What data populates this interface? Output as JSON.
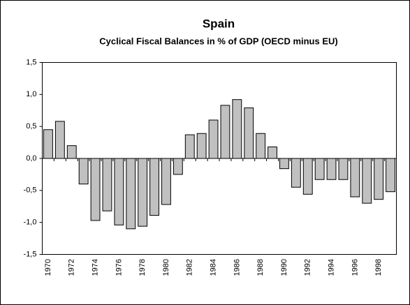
{
  "chart_data": {
    "type": "bar",
    "title": "Spain",
    "subtitle": "Cyclical Fiscal Balances in % of GDP (OECD minus EU)",
    "categories": [
      "1970",
      null,
      "1972",
      null,
      "1974",
      null,
      "1976",
      null,
      "1978",
      null,
      "1980",
      null,
      "1982",
      null,
      "1984",
      null,
      "1986",
      null,
      "1988",
      null,
      "1990",
      null,
      "1992",
      null,
      "1994",
      null,
      "1996",
      null,
      "1998",
      null
    ],
    "values": [
      0.45,
      0.58,
      0.2,
      -0.4,
      -0.97,
      -0.82,
      -1.04,
      -1.1,
      -1.06,
      -0.89,
      -0.72,
      -0.25,
      0.37,
      0.39,
      0.6,
      0.83,
      0.92,
      0.79,
      0.39,
      0.18,
      -0.16,
      -0.45,
      -0.56,
      -0.33,
      -0.33,
      -0.33,
      -0.6,
      -0.7,
      -0.64,
      -0.52
    ],
    "color": "#c0c0c0",
    "ylim": [
      -1.5,
      1.5
    ],
    "yticks": [
      {
        "value": -1.5,
        "label": "-1,5"
      },
      {
        "value": -1.0,
        "label": "-1,0"
      },
      {
        "value": -0.5,
        "label": "-0,5"
      },
      {
        "value": 0,
        "label": "0,0"
      },
      {
        "value": 0.5,
        "label": "0,5"
      },
      {
        "value": 1.0,
        "label": "1,0"
      },
      {
        "value": 1.5,
        "label": "1,5"
      }
    ],
    "grid": false
  }
}
